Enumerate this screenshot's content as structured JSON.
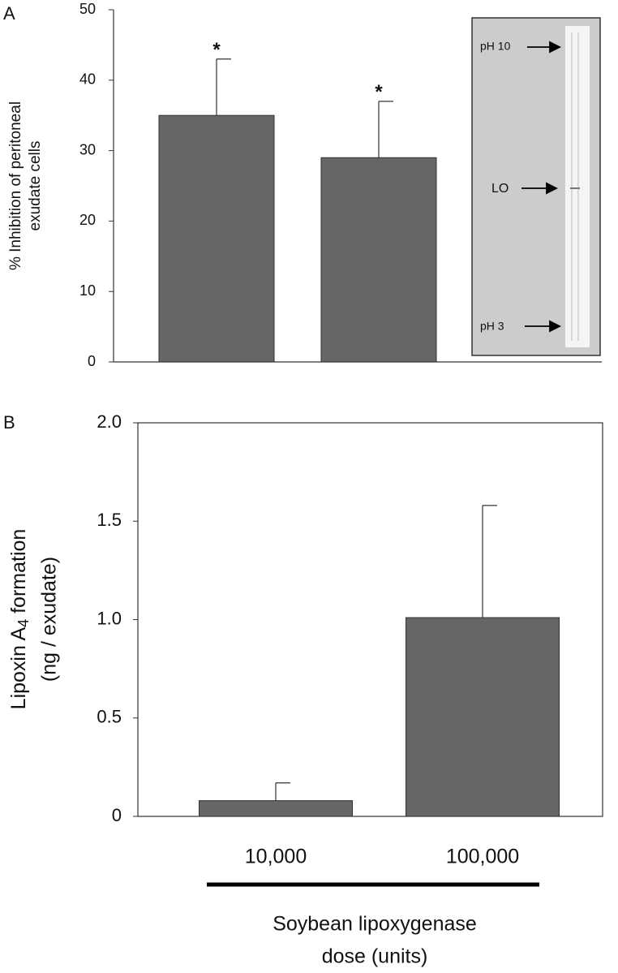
{
  "chart_data": [
    {
      "type": "bar",
      "panel": "A",
      "ylabel": [
        "% Inhibition of peritoneal",
        "exudate cells"
      ],
      "categories": [
        null,
        null
      ],
      "series": [
        {
          "color": "#666666",
          "values": [
            35,
            29
          ],
          "errors": [
            8,
            8
          ]
        }
      ],
      "annotations": [
        "*",
        "*"
      ],
      "ylim": [
        0,
        50
      ],
      "yticks": [
        0,
        10,
        20,
        30,
        40,
        50
      ],
      "inset": {
        "labels": [
          "pH 10",
          "LO",
          "pH 3"
        ]
      }
    },
    {
      "type": "bar",
      "panel": "B",
      "ylabel": [
        "Lipoxin A",
        "4",
        " formation",
        "(ng / exudate)"
      ],
      "xlabel": [
        "Soybean lipoxygenase",
        "dose (units)"
      ],
      "categories": [
        "10,000",
        "100,000"
      ],
      "series": [
        {
          "color": "#666666",
          "values": [
            0.08,
            1.01
          ],
          "errors": [
            0.09,
            0.57
          ]
        }
      ],
      "ylim": [
        0,
        2
      ],
      "yticks": [
        0,
        0.5,
        {
          "value": 1,
          "label": "1.0"
        },
        1.5,
        {
          "value": 2,
          "label": "2.0"
        }
      ]
    }
  ]
}
